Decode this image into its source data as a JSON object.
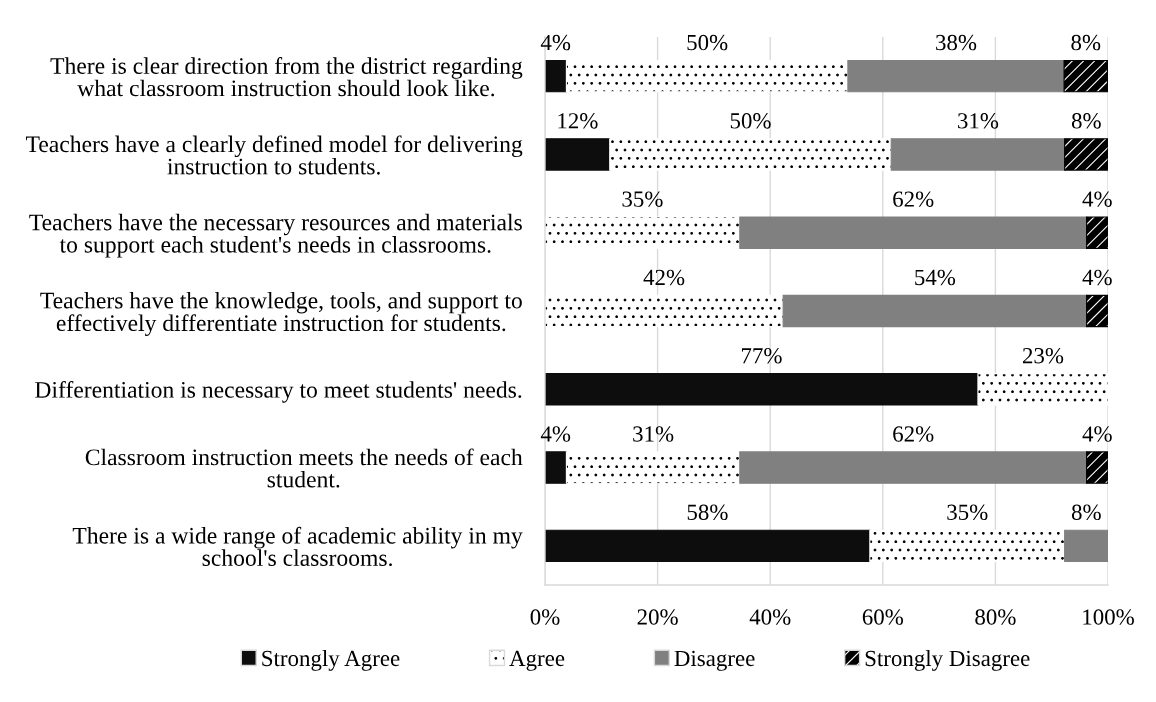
{
  "chart_data": {
    "type": "bar",
    "orientation": "horizontal",
    "stacked": true,
    "categories": [
      "There is clear direction from the district regarding what classroom instruction should look like.",
      "Teachers have a clearly defined model for delivering instruction to students.",
      "Teachers have the necessary resources and materials to support each student's needs in classrooms.",
      "Teachers have the knowledge, tools, and support to effectively differentiate instruction for students.",
      "Differentiation is necessary to meet students' needs.",
      "Classroom instruction meets the needs of each student.",
      "There is a wide range of academic ability in my school's classrooms."
    ],
    "series": [
      {
        "name": "Strongly Agree",
        "color": "#0d0d0d",
        "values": [
          3.8,
          11.5,
          null,
          null,
          76.9,
          3.8,
          57.7
        ],
        "value_labels": [
          "4%",
          "12%",
          null,
          null,
          "77%",
          "4%",
          "58%"
        ]
      },
      {
        "name": "Agree",
        "color": "#ffffff",
        "values": [
          50.0,
          50.0,
          34.6,
          42.3,
          23.1,
          30.8,
          34.6
        ],
        "value_labels": [
          "50%",
          "50%",
          "35%",
          "42%",
          "23%",
          "31%",
          "35%"
        ]
      },
      {
        "name": "Disagree",
        "color": "#808080",
        "values": [
          38.4,
          30.8,
          61.6,
          53.9,
          null,
          61.6,
          7.7
        ],
        "value_labels": [
          "38%",
          "31%",
          "62%",
          "54%",
          null,
          "62%",
          "8%"
        ]
      },
      {
        "name": "Strongly Disagree",
        "color": "#000000",
        "values": [
          7.7,
          7.7,
          3.8,
          3.8,
          null,
          3.8,
          null
        ],
        "value_labels": [
          "8%",
          "8%",
          "4%",
          "4%",
          null,
          "4%",
          null
        ]
      }
    ],
    "xlim": [
      0,
      100
    ],
    "xticks": [
      {
        "value": 0,
        "label": "0%"
      },
      {
        "value": 20,
        "label": "20%"
      },
      {
        "value": 40,
        "label": "40%"
      },
      {
        "value": 60,
        "label": "60%"
      },
      {
        "value": 80,
        "label": "80%"
      },
      {
        "value": 100,
        "label": "100%"
      }
    ],
    "grid": "x",
    "legend": "bottom"
  }
}
